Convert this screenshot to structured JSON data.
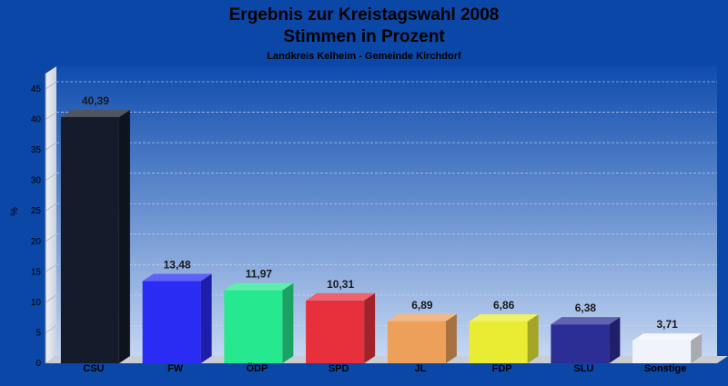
{
  "chart_data": {
    "type": "bar",
    "title": "Ergebnis zur Kreistagswahl 2008",
    "subtitle_line": "Stimmen in Prozent",
    "caption": "Landkreis Kelheim - Gemeinde Kirchdorf",
    "ylabel": "%",
    "xlabel": "",
    "ylim": [
      0,
      45
    ],
    "yticks": [
      0,
      5,
      10,
      15,
      20,
      25,
      30,
      35,
      40,
      45
    ],
    "categories": [
      "CSU",
      "FW",
      "ÖDP",
      "SPD",
      "JL",
      "FDP",
      "SLU",
      "Sonstige"
    ],
    "values": [
      40.39,
      13.48,
      11.97,
      10.31,
      6.89,
      6.86,
      6.38,
      3.71
    ],
    "value_labels": [
      "40,39",
      "13,48",
      "11,97",
      "10,31",
      "6,89",
      "6,86",
      "6,38",
      "3,71"
    ],
    "colors": [
      "#141c2c",
      "#2a2cf4",
      "#25e88f",
      "#e8303c",
      "#eda05a",
      "#e9ec33",
      "#2c2e96",
      "#f0f3fb"
    ],
    "grid": true,
    "legend": "none"
  }
}
